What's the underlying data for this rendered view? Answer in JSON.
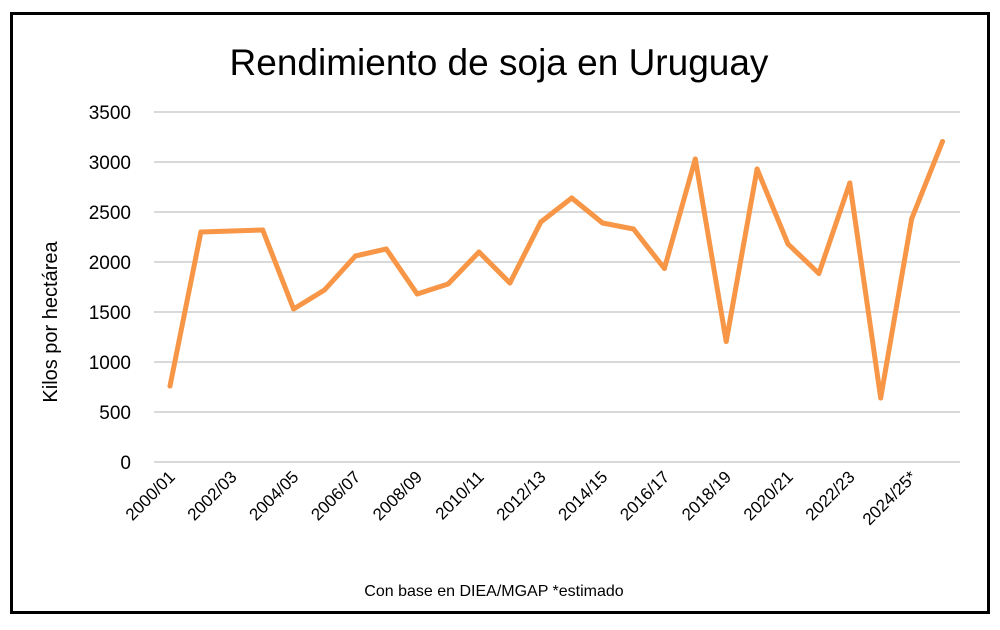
{
  "chart_data": {
    "type": "line",
    "title": "Rendimiento de soja en Uruguay",
    "xlabel": "",
    "ylabel": "Kilos por hectárea",
    "footer": "Con base en DIEA/MGAP *estimado",
    "ylim": [
      0,
      3500
    ],
    "yticks": [
      "0",
      "500",
      "1000",
      "1500",
      "2000",
      "2500",
      "3000",
      "3500"
    ],
    "grid": true,
    "legend": "none",
    "line_color": "#F79646",
    "categories": [
      "2000/01",
      "",
      "2002/03",
      "",
      "2004/05",
      "",
      "2006/07",
      "",
      "2008/09",
      "",
      "2010/11",
      "",
      "2012/13",
      "",
      "2014/15",
      "",
      "2016/17",
      "",
      "2018/19",
      "",
      "2020/21",
      "",
      "2022/23",
      "",
      "2024/25*",
      ""
    ],
    "series": [
      {
        "values": [
          760,
          2300,
          2310,
          2320,
          1530,
          1720,
          2060,
          2130,
          1680,
          1780,
          2100,
          1790,
          2400,
          2640,
          2390,
          2330,
          1935,
          3030,
          1205,
          2930,
          2180,
          1885,
          2790,
          640,
          2430,
          3205
        ]
      }
    ]
  }
}
